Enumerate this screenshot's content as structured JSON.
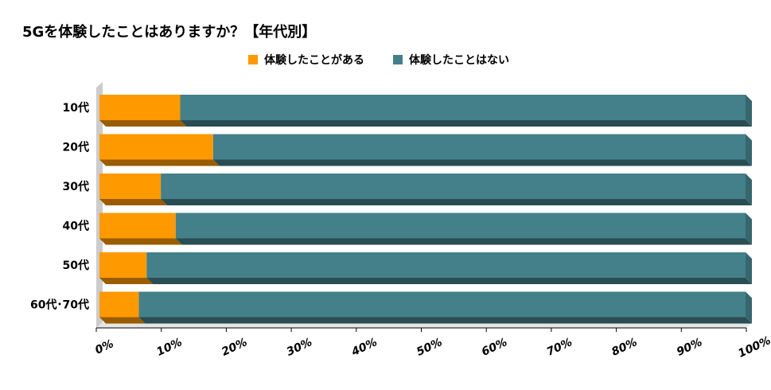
{
  "chart_data": {
    "type": "bar",
    "orientation": "horizontal",
    "stacked": "percent",
    "title": "5Gを体験したことはありますか？【年代別】",
    "categories": [
      "10代",
      "20代",
      "30代",
      "40代",
      "50代",
      "60代･70代"
    ],
    "series": [
      {
        "name": "体験したことがある",
        "color": "#ff9900",
        "values": [
          12.5,
          17.6,
          9.5,
          11.8,
          7.3,
          6.1
        ]
      },
      {
        "name": "体験したことはない",
        "color": "#44808a",
        "values": [
          87.5,
          82.4,
          90.5,
          88.2,
          92.7,
          93.9
        ]
      }
    ],
    "xlim": [
      0,
      100
    ],
    "xticks": [
      "0%",
      "10%",
      "20%",
      "30%",
      "40%",
      "50%",
      "60%",
      "70%",
      "80%",
      "90%",
      "100%"
    ],
    "grid": false,
    "legend": "top-center"
  }
}
